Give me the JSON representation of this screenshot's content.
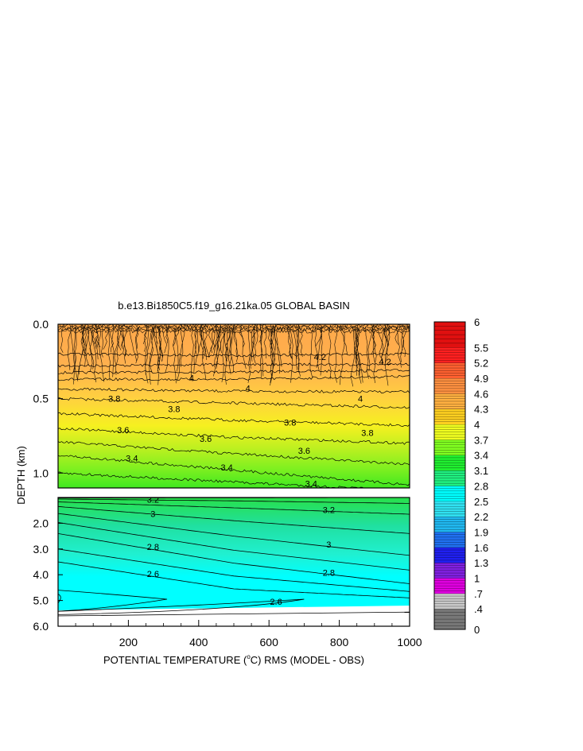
{
  "chart_data": {
    "type": "heatmap",
    "title": "b.e13.Bi1850C5.f19_g16.21ka.05 GLOBAL BASIN",
    "xlabel_prefix": "POTENTIAL TEMPERATURE (",
    "xlabel_deg": "o",
    "xlabel_suffix": "C) RMS (MODEL - OBS)",
    "ylabel": "DEPTH (km)",
    "xlim": [
      0,
      1000
    ],
    "x_ticks": [
      {
        "value": 200,
        "label": "200"
      },
      {
        "value": 400,
        "label": "400"
      },
      {
        "value": 600,
        "label": "600"
      },
      {
        "value": 800,
        "label": "800"
      },
      {
        "value": 1000,
        "label": "1000"
      }
    ],
    "upper_panel": {
      "ylim": [
        0,
        1.1
      ],
      "y_ticks": [
        {
          "value": 0.0,
          "label": "0.0"
        },
        {
          "value": 0.5,
          "label": "0.5"
        },
        {
          "value": 1.0,
          "label": "1.0"
        }
      ],
      "contours": [
        {
          "level": 4.2,
          "depth_at_x": [
            [
              0,
              0.28
            ],
            [
              500,
              0.27
            ],
            [
              1000,
              0.27
            ]
          ],
          "labels": [
            [
              745,
              0.22,
              "4.2"
            ],
            [
              930,
              0.25,
              "4.2"
            ]
          ]
        },
        {
          "level": 4,
          "depth_at_x": [
            [
              0,
              0.37
            ],
            [
              500,
              0.37
            ],
            [
              1000,
              0.35
            ]
          ],
          "labels": [
            [
              380,
              0.36,
              "4"
            ],
            [
              540,
              0.43,
              "4"
            ],
            [
              860,
              0.5,
              "4"
            ]
          ]
        },
        {
          "level": 3.8,
          "depth_at_x": [
            [
              0,
              0.5
            ],
            [
              500,
              0.53
            ],
            [
              1000,
              0.56
            ]
          ],
          "labels": [
            [
              160,
              0.5,
              "3.8"
            ],
            [
              330,
              0.57,
              "3.8"
            ],
            [
              660,
              0.66,
              "3.8"
            ],
            [
              880,
              0.73,
              "3.8"
            ]
          ]
        },
        {
          "level": 3.6,
          "depth_at_x": [
            [
              0,
              0.7
            ],
            [
              500,
              0.76
            ],
            [
              1000,
              0.8
            ]
          ],
          "labels": [
            [
              185,
              0.71,
              "3.6"
            ],
            [
              420,
              0.77,
              "3.6"
            ],
            [
              700,
              0.85,
              "3.6"
            ]
          ]
        },
        {
          "level": 3.4,
          "depth_at_x": [
            [
              0,
              0.88
            ],
            [
              500,
              0.98
            ],
            [
              1000,
              1.08
            ]
          ],
          "labels": [
            [
              210,
              0.9,
              "3.4"
            ],
            [
              480,
              0.96,
              "3.4"
            ],
            [
              720,
              1.07,
              "3.4"
            ]
          ]
        }
      ]
    },
    "lower_panel": {
      "ylim": [
        1.0,
        6.0
      ],
      "y_ticks": [
        {
          "value": 2.0,
          "label": "2.0"
        },
        {
          "value": 3.0,
          "label": "3.0"
        },
        {
          "value": 4.0,
          "label": "4.0"
        },
        {
          "value": 5.0,
          "label": "5.0"
        },
        {
          "value": 6.0,
          "label": "6.0"
        }
      ],
      "contours": [
        {
          "level": 3.2,
          "labels": [
            [
              270,
              1.08,
              "3.2"
            ],
            [
              770,
              1.48,
              "3.2"
            ]
          ]
        },
        {
          "level": 3,
          "labels": [
            [
              270,
              1.63,
              "3"
            ],
            [
              770,
              2.82,
              "3"
            ]
          ]
        },
        {
          "level": 2.8,
          "labels": [
            [
              270,
              2.92,
              "2.8"
            ],
            [
              770,
              3.92,
              "2.8"
            ]
          ]
        },
        {
          "level": 2.6,
          "labels": [
            [
              270,
              3.97,
              "2.6"
            ],
            [
              620,
              5.05,
              "2.6"
            ]
          ]
        }
      ]
    },
    "colorbar": {
      "levels": [
        0,
        0.4,
        0.7,
        1,
        1.3,
        1.6,
        1.9,
        2.2,
        2.5,
        2.8,
        3.1,
        3.4,
        3.7,
        4,
        4.3,
        4.6,
        4.9,
        5.2,
        5.5,
        6
      ],
      "labels": [
        "6",
        "5.5",
        "5.2",
        "4.9",
        "4.6",
        "4.3",
        "4",
        "3.7",
        "3.4",
        "3.1",
        "2.8",
        "2.5",
        "2.2",
        "1.9",
        "1.6",
        "1.3",
        "1",
        ".7",
        ".4",
        "0"
      ],
      "colors": [
        "#777777",
        "#c8c8c8",
        "#e000e0",
        "#8020e0",
        "#2020f0",
        "#2070f0",
        "#20b8f0",
        "#30e0f0",
        "#00ffff",
        "#20f080",
        "#20f030",
        "#80ff20",
        "#f0ff20",
        "#ffd020",
        "#ffb040",
        "#ff9040",
        "#ff6030",
        "#ff2020",
        "#e01010",
        "#c00000"
      ]
    }
  }
}
